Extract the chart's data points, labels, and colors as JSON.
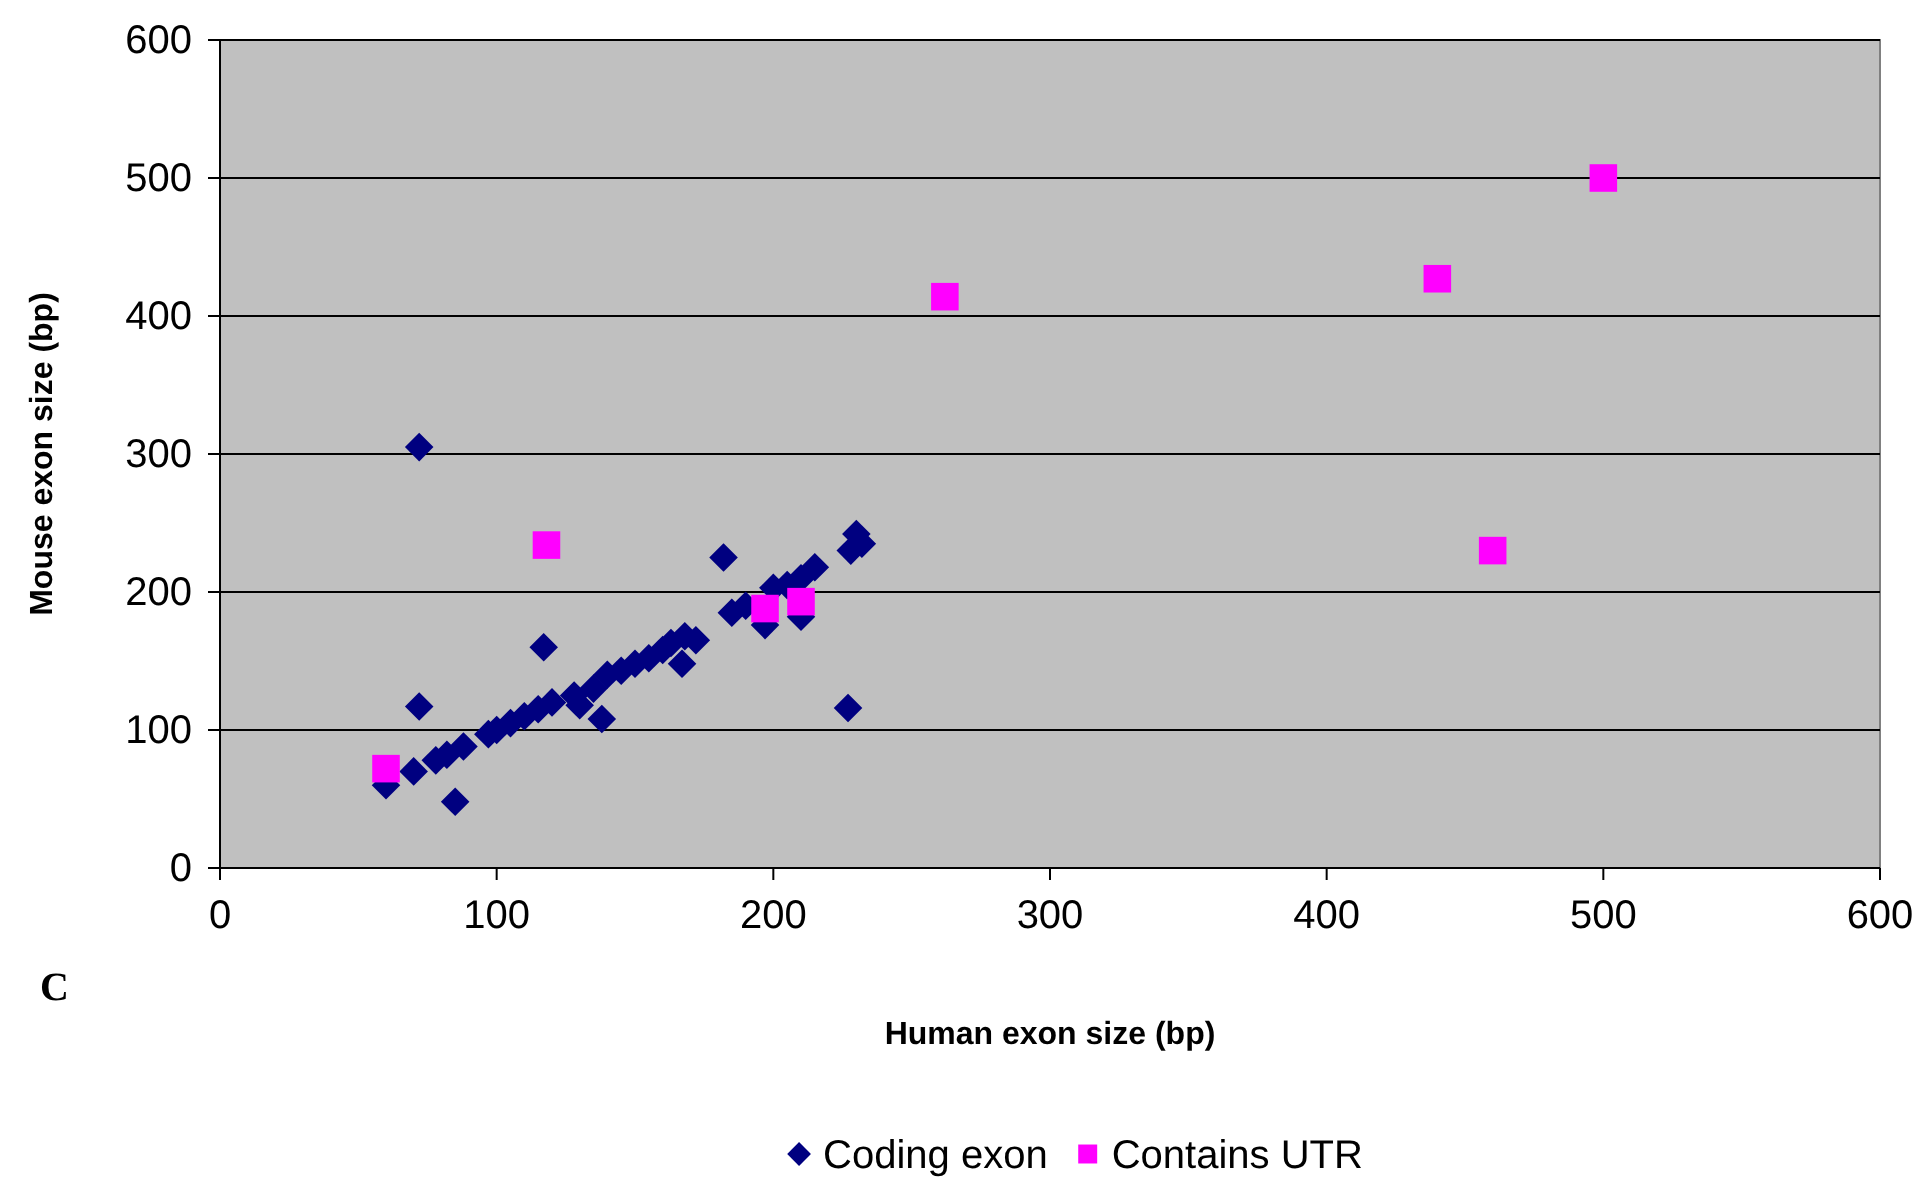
{
  "chart_data": {
    "type": "scatter",
    "xlabel": "Human exon size (bp)",
    "ylabel": "Mouse exon size (bp)",
    "annotations": [
      "C"
    ],
    "xlim": [
      0,
      600
    ],
    "xticks": [
      0,
      100,
      200,
      300,
      400,
      500,
      600
    ],
    "ylim": [
      0,
      600
    ],
    "yticks": [
      0,
      100,
      200,
      300,
      400,
      500,
      600
    ],
    "grid": "y",
    "legend": "bottom",
    "series": [
      {
        "name": "Coding exon",
        "color": "#000080",
        "marker": "diamond",
        "x": [
          60,
          72,
          72,
          70,
          85,
          78,
          82,
          88,
          97,
          100,
          105,
          110,
          115,
          117,
          120,
          128,
          130,
          135,
          138,
          140,
          145,
          150,
          155,
          160,
          163,
          167,
          168,
          172,
          182,
          185,
          190,
          197,
          200,
          205,
          210,
          210,
          215,
          227,
          228,
          230,
          232
        ],
        "values": [
          60,
          305,
          117,
          70,
          48,
          78,
          82,
          88,
          97,
          100,
          105,
          110,
          115,
          160,
          120,
          125,
          118,
          130,
          108,
          140,
          143,
          148,
          152,
          158,
          163,
          148,
          168,
          165,
          225,
          185,
          190,
          176,
          203,
          205,
          182,
          210,
          218,
          116,
          230,
          242,
          235
        ]
      },
      {
        "name": "Contains UTR",
        "color": "#ff00ff",
        "marker": "square",
        "x": [
          60,
          118,
          197,
          210,
          262,
          440,
          460,
          500
        ],
        "values": [
          72,
          234,
          188,
          193,
          414,
          427,
          230,
          500
        ]
      }
    ]
  }
}
